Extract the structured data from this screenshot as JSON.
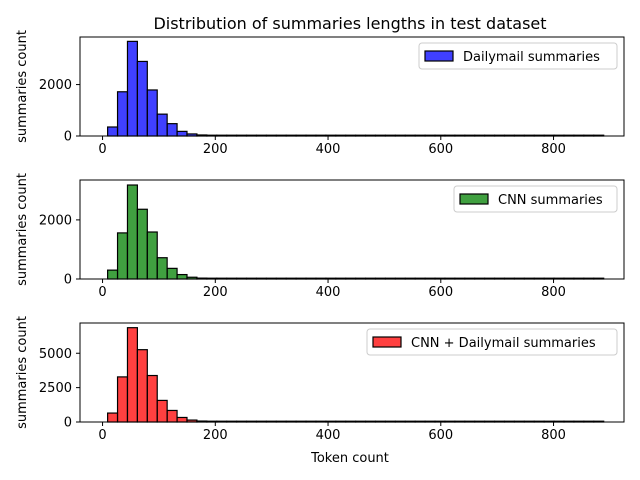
{
  "title": "Distribution of summaries lengths in test dataset",
  "chart_data": [
    {
      "type": "bar",
      "legend": "Dailymail summaries",
      "ylabel": "summaries count",
      "xlabel": "",
      "color": "#0000ff",
      "bin_width": 17.6,
      "bin_start": 9,
      "xlim": [
        -40,
        925
      ],
      "ylim": [
        0,
        3850
      ],
      "xticks": [
        0,
        200,
        400,
        600,
        800
      ],
      "yticks": [
        0,
        2000
      ],
      "values": [
        350,
        1720,
        3680,
        2900,
        1790,
        850,
        480,
        180,
        80,
        40,
        20,
        10,
        6,
        4,
        3,
        2,
        2,
        1,
        1,
        1,
        1,
        1,
        1,
        1,
        1,
        1,
        1,
        1,
        1,
        1,
        1,
        1,
        1,
        1,
        1,
        1,
        1,
        1,
        1,
        1,
        1,
        1,
        1,
        1,
        1,
        1,
        1,
        1,
        1,
        1
      ],
      "legend_position": "upper right",
      "grid": false
    },
    {
      "type": "bar",
      "legend": "CNN summaries",
      "ylabel": "summaries count",
      "xlabel": "",
      "color": "#008000",
      "bin_width": 17.6,
      "bin_start": 9,
      "xlim": [
        -40,
        925
      ],
      "ylim": [
        0,
        3350
      ],
      "xticks": [
        0,
        200,
        400,
        600,
        800
      ],
      "yticks": [
        0,
        2000
      ],
      "values": [
        300,
        1560,
        3180,
        2360,
        1590,
        720,
        360,
        150,
        60,
        30,
        15,
        8,
        5,
        4,
        3,
        2,
        2,
        1,
        1,
        1,
        1,
        1,
        1,
        1,
        1,
        1,
        1,
        1,
        1,
        1,
        1,
        1,
        1,
        1,
        1,
        1,
        1,
        1,
        1,
        1,
        1,
        1,
        1,
        1,
        1,
        1,
        1,
        1,
        1,
        1
      ],
      "legend_position": "upper right",
      "grid": false
    },
    {
      "type": "bar",
      "legend": "CNN + Dailymail summaries",
      "ylabel": "summaries count",
      "xlabel": "Token count",
      "color": "#ff0000",
      "bin_width": 17.6,
      "bin_start": 9,
      "xlim": [
        -40,
        925
      ],
      "ylim": [
        0,
        7200
      ],
      "xticks": [
        0,
        200,
        400,
        600,
        800
      ],
      "yticks": [
        0,
        2500,
        5000
      ],
      "values": [
        650,
        3280,
        6860,
        5260,
        3380,
        1570,
        840,
        330,
        140,
        70,
        35,
        18,
        11,
        8,
        6,
        4,
        4,
        2,
        2,
        2,
        2,
        2,
        2,
        2,
        2,
        2,
        2,
        2,
        2,
        2,
        2,
        2,
        2,
        2,
        2,
        2,
        2,
        2,
        2,
        2,
        2,
        2,
        2,
        2,
        2,
        2,
        2,
        2,
        2,
        2
      ],
      "legend_position": "upper right",
      "grid": false
    }
  ]
}
